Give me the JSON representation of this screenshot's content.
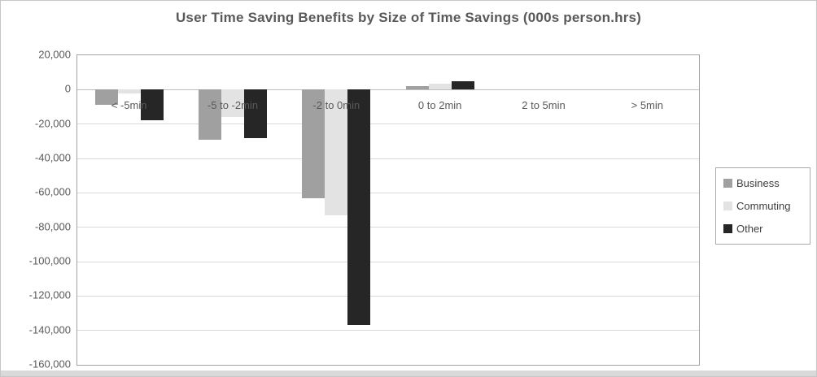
{
  "chart": {
    "title": "User Time Saving Benefits by Size of Time Savings (000s person.hrs)"
  },
  "chart_data": {
    "type": "bar",
    "title": "User Time Saving Benefits by Size of Time Savings (000s person.hrs)",
    "xlabel": "",
    "ylabel": "",
    "categories": [
      "< -5min",
      "-5 to -2min",
      "-2 to 0min",
      "0 to 2min",
      "2 to 5min",
      "> 5min"
    ],
    "series": [
      {
        "name": "Business",
        "color": "#a0a0a0",
        "values": [
          -9000,
          -29000,
          -63000,
          2000,
          0,
          0
        ]
      },
      {
        "name": "Commuting",
        "color": "#e3e3e3",
        "values": [
          -2000,
          -16000,
          -73000,
          3500,
          0,
          0
        ]
      },
      {
        "name": "Other",
        "color": "#262626",
        "values": [
          -18000,
          -28000,
          -137000,
          5000,
          0,
          0
        ]
      }
    ],
    "ylim": [
      -160000,
      20000
    ],
    "yticks": [
      {
        "value": 20000,
        "label": "20,000"
      },
      {
        "value": 0,
        "label": "0"
      },
      {
        "value": -20000,
        "label": "-20,000"
      },
      {
        "value": -40000,
        "label": "-40,000"
      },
      {
        "value": -60000,
        "label": "-60,000"
      },
      {
        "value": -80000,
        "label": "-80,000"
      },
      {
        "value": -100000,
        "label": "-100,000"
      },
      {
        "value": -120000,
        "label": "-120,000"
      },
      {
        "value": -140000,
        "label": "-140,000"
      },
      {
        "value": -160000,
        "label": "-160,000"
      }
    ],
    "grid": true,
    "legend_position": "right",
    "colors": {
      "title_text": "#595959",
      "axis_text": "#595959",
      "gridline": "#d9d9d9",
      "plot_border": "#a3a3a3"
    }
  }
}
